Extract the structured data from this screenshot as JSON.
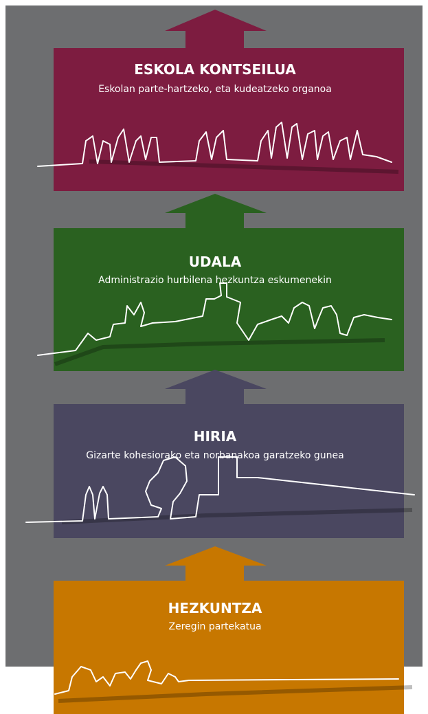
{
  "levels": [
    {
      "title": "ESKOLA KONTSEILUA",
      "subtitle": "Eskolan parte-hartzeko, eta kudeatzeko organoa"
    },
    {
      "title": "UDALA",
      "subtitle": "Administrazio hurbilena hezkuntza eskumenekin"
    },
    {
      "title": "HIRIA",
      "subtitle": "Gizarte kohesiorako eta norbanakoa garatzeko gunea"
    },
    {
      "title": "HEZKUNTZA",
      "subtitle": "Zeregin partekatua"
    }
  ]
}
